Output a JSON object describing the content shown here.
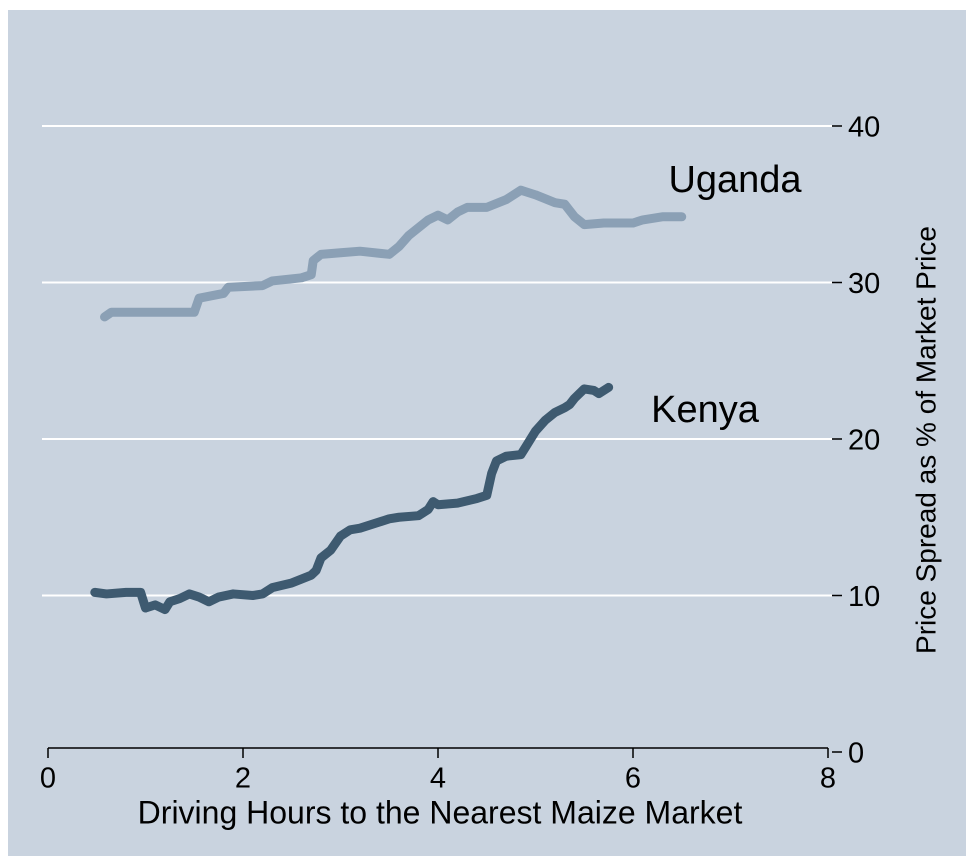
{
  "chart_data": {
    "type": "line",
    "xlabel": "Driving Hours to the Nearest Maize Market",
    "ylabel": "Price Spread as % of Market Price",
    "annotations": [
      "Uganda",
      "Kenya"
    ],
    "xlim": [
      0,
      8
    ],
    "xticks": [
      0,
      2,
      4,
      6,
      8
    ],
    "ylim": [
      0,
      40
    ],
    "yticks": [
      0,
      10,
      20,
      30,
      40
    ],
    "grid": true,
    "y_axis_side": "right",
    "series": [
      {
        "name": "Uganda",
        "color": "#8ba0b5",
        "x": [
          0.58,
          0.65,
          1.0,
          1.5,
          1.55,
          1.8,
          1.85,
          2.2,
          2.3,
          2.6,
          2.7,
          2.72,
          2.8,
          3.0,
          3.2,
          3.5,
          3.6,
          3.7,
          3.9,
          4.0,
          4.1,
          4.2,
          4.3,
          4.5,
          4.7,
          4.85,
          4.9,
          5.0,
          5.2,
          5.3,
          5.4,
          5.5,
          5.7,
          6.0,
          6.1,
          6.3,
          6.5
        ],
        "values": [
          27.8,
          28.1,
          28.1,
          28.1,
          29.0,
          29.3,
          29.7,
          29.8,
          30.1,
          30.3,
          30.5,
          31.4,
          31.8,
          31.9,
          32.0,
          31.8,
          32.3,
          33.0,
          34.0,
          34.3,
          34.0,
          34.5,
          34.8,
          34.8,
          35.3,
          35.9,
          35.8,
          35.6,
          35.1,
          35.0,
          34.2,
          33.7,
          33.8,
          33.8,
          34.0,
          34.2,
          34.2
        ]
      },
      {
        "name": "Kenya",
        "color": "#3e5a70",
        "x": [
          0.48,
          0.6,
          0.8,
          0.95,
          1.0,
          1.1,
          1.2,
          1.25,
          1.35,
          1.45,
          1.55,
          1.65,
          1.75,
          1.9,
          2.1,
          2.2,
          2.3,
          2.5,
          2.7,
          2.75,
          2.8,
          2.9,
          3.0,
          3.1,
          3.2,
          3.4,
          3.5,
          3.6,
          3.8,
          3.9,
          3.95,
          4.0,
          4.2,
          4.4,
          4.5,
          4.55,
          4.6,
          4.7,
          4.85,
          4.9,
          5.0,
          5.1,
          5.2,
          5.3,
          5.35,
          5.4,
          5.5,
          5.6,
          5.65,
          5.75
        ],
        "values": [
          10.2,
          10.1,
          10.2,
          10.2,
          9.2,
          9.4,
          9.1,
          9.6,
          9.8,
          10.1,
          9.9,
          9.6,
          9.9,
          10.1,
          10.0,
          10.1,
          10.5,
          10.8,
          11.3,
          11.6,
          12.4,
          12.9,
          13.8,
          14.2,
          14.3,
          14.7,
          14.9,
          15.0,
          15.1,
          15.5,
          16.0,
          15.8,
          15.9,
          16.2,
          16.4,
          17.8,
          18.6,
          18.9,
          19.0,
          19.5,
          20.5,
          21.2,
          21.7,
          22.0,
          22.2,
          22.6,
          23.2,
          23.1,
          22.9,
          23.3
        ]
      }
    ]
  }
}
